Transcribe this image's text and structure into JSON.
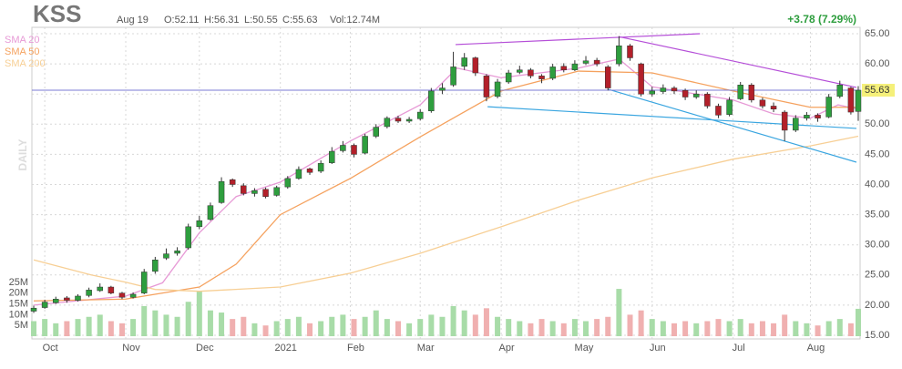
{
  "chart_data": {
    "type": "candlestick",
    "ticker": "KSS",
    "date": "Aug 19",
    "open_text": "O:52.11",
    "high_text": "H:56.31",
    "low_text": "L:50.55",
    "close_text": "C:55.63",
    "volume_text": "Vol:12.74M",
    "change_text": "+3.78 (7.29%)",
    "timeframe": "DAILY",
    "up_color": "#2e9e3e",
    "down_color": "#b3202a",
    "up_volume_color": "#a8dca8",
    "down_volume_color": "#f0b0b0",
    "xlim": [
      -0.5,
      224.5
    ],
    "xticks": [
      {
        "value": 3,
        "label": "Oct"
      },
      {
        "value": 25,
        "label": "Nov"
      },
      {
        "value": 45,
        "label": "Dec"
      },
      {
        "value": 67,
        "label": "2021"
      },
      {
        "value": 86,
        "label": "Feb"
      },
      {
        "value": 105,
        "label": "Mar"
      },
      {
        "value": 127,
        "label": "Apr"
      },
      {
        "value": 148,
        "label": "May"
      },
      {
        "value": 168,
        "label": "Jun"
      },
      {
        "value": 190,
        "label": "Jul"
      },
      {
        "value": 211,
        "label": "Aug"
      }
    ],
    "ylim": [
      15,
      65
    ],
    "yticks": [
      {
        "value": 15,
        "label": "15.00"
      },
      {
        "value": 20,
        "label": "20.00"
      },
      {
        "value": 25,
        "label": "25.00"
      },
      {
        "value": 30,
        "label": "30.00"
      },
      {
        "value": 35,
        "label": "35.00"
      },
      {
        "value": 40,
        "label": "40.00"
      },
      {
        "value": 45,
        "label": "45.00"
      },
      {
        "value": 50,
        "label": "50.00"
      },
      {
        "value": 55,
        "label": "55.00"
      },
      {
        "value": 60,
        "label": "60.00"
      },
      {
        "value": 65,
        "label": "65.00"
      }
    ],
    "volume_lim": [
      0,
      25
    ],
    "volume_ticks": [
      {
        "value": 5,
        "label": "5M"
      },
      {
        "value": 10,
        "label": "10M"
      },
      {
        "value": 15,
        "label": "15M"
      },
      {
        "value": 20,
        "label": "20M"
      },
      {
        "value": 25,
        "label": "25M"
      }
    ],
    "last_price": 55.63,
    "last_price_color": "#7b7bd6",
    "x": [
      0,
      3,
      6,
      9,
      12,
      15,
      18,
      21,
      24,
      27,
      30,
      33,
      36,
      39,
      42,
      45,
      48,
      51,
      54,
      57,
      60,
      63,
      66,
      69,
      72,
      75,
      78,
      81,
      84,
      87,
      90,
      93,
      96,
      99,
      102,
      105,
      108,
      111,
      114,
      117,
      120,
      123,
      126,
      129,
      132,
      135,
      138,
      141,
      144,
      147,
      150,
      153,
      156,
      159,
      162,
      165,
      168,
      171,
      174,
      177,
      180,
      183,
      186,
      189,
      192,
      195,
      198,
      201,
      204,
      207,
      210,
      213,
      216,
      219,
      222,
      224
    ],
    "candles": [
      [
        19.0,
        19.9,
        18.7,
        19.5
      ],
      [
        19.6,
        20.9,
        19.4,
        20.5
      ],
      [
        20.4,
        21.4,
        20.2,
        21.0
      ],
      [
        21.2,
        21.5,
        20.4,
        20.8
      ],
      [
        20.8,
        21.8,
        20.6,
        21.5
      ],
      [
        21.6,
        22.9,
        21.3,
        22.5
      ],
      [
        22.4,
        23.6,
        22.2,
        23.0
      ],
      [
        23.0,
        23.2,
        21.8,
        22.0
      ],
      [
        22.0,
        22.2,
        21.0,
        21.3
      ],
      [
        21.3,
        22.1,
        21.1,
        21.8
      ],
      [
        22.0,
        26.0,
        21.8,
        25.5
      ],
      [
        25.6,
        28.0,
        25.2,
        27.5
      ],
      [
        27.8,
        29.4,
        27.5,
        28.5
      ],
      [
        28.6,
        29.6,
        28.2,
        29.0
      ],
      [
        29.5,
        33.5,
        29.2,
        33.0
      ],
      [
        33.0,
        34.8,
        32.6,
        34.0
      ],
      [
        34.2,
        37.0,
        34.0,
        36.5
      ],
      [
        37.0,
        41.2,
        36.8,
        40.5
      ],
      [
        40.8,
        41.0,
        39.6,
        40.0
      ],
      [
        39.8,
        40.2,
        38.2,
        38.5
      ],
      [
        38.5,
        39.4,
        38.0,
        39.0
      ],
      [
        39.2,
        39.5,
        37.7,
        38.0
      ],
      [
        38.2,
        39.8,
        38.0,
        39.5
      ],
      [
        39.6,
        41.4,
        39.3,
        41.0
      ],
      [
        41.0,
        43.0,
        40.8,
        42.5
      ],
      [
        42.6,
        42.8,
        41.6,
        42.0
      ],
      [
        42.2,
        44.0,
        41.9,
        43.5
      ],
      [
        43.6,
        46.2,
        43.4,
        45.5
      ],
      [
        45.6,
        47.2,
        45.3,
        46.5
      ],
      [
        46.5,
        46.8,
        44.5,
        45.0
      ],
      [
        45.2,
        48.4,
        45.0,
        48.0
      ],
      [
        48.0,
        50.0,
        47.7,
        49.5
      ],
      [
        49.6,
        51.3,
        49.3,
        51.0
      ],
      [
        51.0,
        51.4,
        50.2,
        50.5
      ],
      [
        50.5,
        51.2,
        50.2,
        50.8
      ],
      [
        50.9,
        52.5,
        50.6,
        52.0
      ],
      [
        52.2,
        56.0,
        51.9,
        55.5
      ],
      [
        55.6,
        56.8,
        55.0,
        56.0
      ],
      [
        56.5,
        62.0,
        56.2,
        59.5
      ],
      [
        59.6,
        61.8,
        59.0,
        61.0
      ],
      [
        61.0,
        61.2,
        58.0,
        58.5
      ],
      [
        58.0,
        58.3,
        53.8,
        54.5
      ],
      [
        54.6,
        57.5,
        54.3,
        57.0
      ],
      [
        57.0,
        59.0,
        56.7,
        58.5
      ],
      [
        58.6,
        59.7,
        58.3,
        59.0
      ],
      [
        59.0,
        59.3,
        57.6,
        58.0
      ],
      [
        58.0,
        58.3,
        56.8,
        57.5
      ],
      [
        57.6,
        60.0,
        57.3,
        59.5
      ],
      [
        59.6,
        60.1,
        58.6,
        59.0
      ],
      [
        59.0,
        60.6,
        58.8,
        60.0
      ],
      [
        60.1,
        61.3,
        59.8,
        60.5
      ],
      [
        60.6,
        61.0,
        59.6,
        60.0
      ],
      [
        59.5,
        59.8,
        55.6,
        56.0
      ],
      [
        60.0,
        64.6,
        59.6,
        63.0
      ],
      [
        63.0,
        63.3,
        60.5,
        61.0
      ],
      [
        60.0,
        60.2,
        54.6,
        55.0
      ],
      [
        55.0,
        56.2,
        54.6,
        55.5
      ],
      [
        55.4,
        56.6,
        55.0,
        56.0
      ],
      [
        56.0,
        56.3,
        55.0,
        55.5
      ],
      [
        55.6,
        55.9,
        54.0,
        54.5
      ],
      [
        54.5,
        55.6,
        54.2,
        55.0
      ],
      [
        55.0,
        55.3,
        52.6,
        53.0
      ],
      [
        53.0,
        53.4,
        51.0,
        51.5
      ],
      [
        51.6,
        54.5,
        51.3,
        54.0
      ],
      [
        54.2,
        57.0,
        54.0,
        56.5
      ],
      [
        56.5,
        56.8,
        53.6,
        54.0
      ],
      [
        54.0,
        54.4,
        52.6,
        53.0
      ],
      [
        53.0,
        53.6,
        52.0,
        52.5
      ],
      [
        52.0,
        52.3,
        47.2,
        49.0
      ],
      [
        49.0,
        51.5,
        48.7,
        51.0
      ],
      [
        51.0,
        52.0,
        50.6,
        51.5
      ],
      [
        51.5,
        51.8,
        50.4,
        51.0
      ],
      [
        51.2,
        55.0,
        51.0,
        54.5
      ],
      [
        54.6,
        57.2,
        54.3,
        56.5
      ],
      [
        56.0,
        56.2,
        51.6,
        52.0
      ],
      [
        52.11,
        56.31,
        50.55,
        55.63
      ]
    ],
    "volume": [
      7,
      8,
      6,
      7,
      8,
      9,
      10,
      7,
      6,
      8,
      14,
      12,
      10,
      9,
      16,
      21,
      12,
      11,
      8,
      9,
      6,
      5,
      7,
      8,
      9,
      6,
      7,
      9,
      10,
      8,
      9,
      12,
      8,
      7,
      6,
      8,
      10,
      9,
      14,
      12,
      10,
      13,
      9,
      8,
      7,
      6,
      8,
      7,
      6,
      8,
      7,
      8,
      9,
      22,
      10,
      12,
      8,
      7,
      6,
      7,
      6,
      7,
      8,
      7,
      8,
      6,
      7,
      6,
      10,
      7,
      6,
      5,
      7,
      8,
      6,
      12.74
    ],
    "series": [
      {
        "name": "SMA 20",
        "color": "#e79ad6",
        "x": [
          0,
          25,
          35,
          45,
          55,
          67,
          86,
          105,
          115,
          127,
          148,
          159,
          168,
          190,
          201,
          211,
          218.5,
          224
        ],
        "values": [
          20,
          21.5,
          23.7,
          32,
          38,
          40.4,
          47.2,
          53.2,
          59.3,
          57.7,
          59.3,
          60.8,
          56.2,
          54,
          51.7,
          51,
          53.2,
          52.5
        ]
      },
      {
        "name": "SMA 50",
        "color": "#f5a25f",
        "x": [
          0,
          25,
          45,
          55,
          67,
          86,
          105,
          127,
          148,
          168,
          190,
          211,
          224
        ],
        "values": [
          20.7,
          21,
          23,
          26.8,
          35,
          41,
          47.9,
          55.5,
          58.8,
          58.5,
          55.5,
          52.8,
          52.8
        ]
      },
      {
        "name": "SMA 200",
        "color": "#f7cf95",
        "x": [
          0,
          15.6,
          25,
          33,
          45,
          67,
          86,
          105,
          127,
          148,
          168,
          190,
          211,
          224
        ],
        "values": [
          27.5,
          25,
          23.8,
          22.6,
          22.3,
          23,
          25.3,
          28.6,
          33,
          37.4,
          41.1,
          44.2,
          46.4,
          48
        ]
      }
    ],
    "trendlines": [
      {
        "color": "#b54fd8",
        "x": [
          114.6,
          181
        ],
        "values": [
          63.2,
          65
        ]
      },
      {
        "color": "#b54fd8",
        "x": [
          159,
          223.5
        ],
        "values": [
          64.5,
          56.1
        ]
      },
      {
        "color": "#3ba6e0",
        "x": [
          123.3,
          223.5
        ],
        "values": [
          52.9,
          49.3
        ]
      },
      {
        "color": "#3ba6e0",
        "x": [
          156,
          223.5
        ],
        "values": [
          55.8,
          43.7
        ]
      }
    ]
  }
}
